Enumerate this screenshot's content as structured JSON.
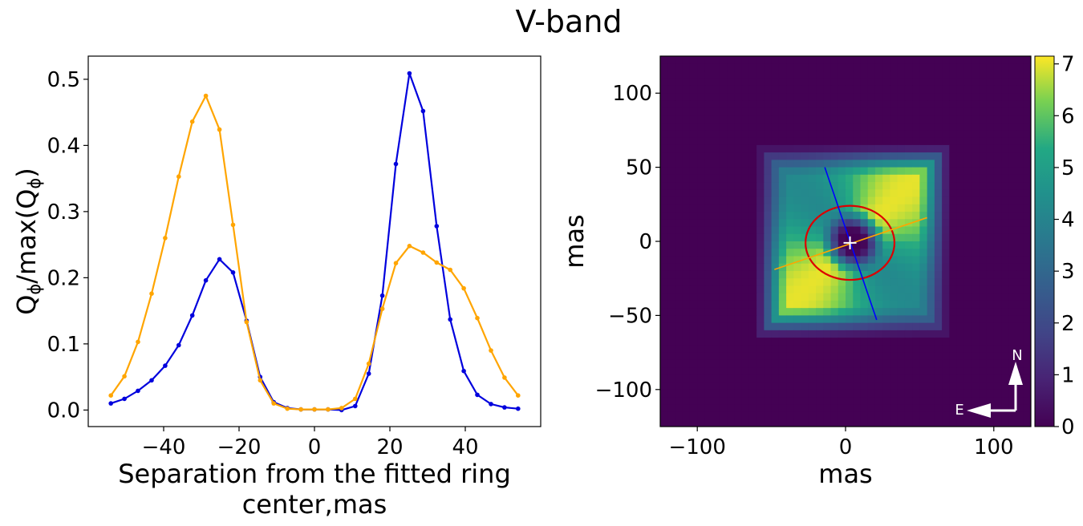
{
  "figure_title": "V-band",
  "chart_data": [
    {
      "type": "line",
      "title": "",
      "xlabel_line1": "Separation from the fitted ring",
      "xlabel_line2": "center,mas",
      "ylabel_main": "Q",
      "ylabel_sub": "ϕ",
      "ylabel_mid": "/max(Q",
      "ylabel_end": ")",
      "xlim": [
        -60,
        60
      ],
      "ylim": [
        -0.025,
        0.535
      ],
      "xticks": [
        -40,
        -20,
        0,
        20,
        40
      ],
      "xtick_labels": [
        "−40",
        "−20",
        "0",
        "20",
        "40"
      ],
      "yticks": [
        0.0,
        0.1,
        0.2,
        0.3,
        0.4,
        0.5
      ],
      "ytick_labels": [
        "0.0",
        "0.1",
        "0.2",
        "0.3",
        "0.4",
        "0.5"
      ],
      "grid": false,
      "x": [
        -54,
        -50.4,
        -46.8,
        -43.2,
        -39.6,
        -36,
        -32.4,
        -28.8,
        -25.2,
        -21.6,
        -18,
        -14.4,
        -10.8,
        -7.2,
        -3.6,
        0,
        3.6,
        7.2,
        10.8,
        14.4,
        18,
        21.6,
        25.2,
        28.8,
        32.4,
        36,
        39.6,
        43.2,
        46.8,
        50.4,
        54
      ],
      "series": [
        {
          "color": "#0000dd",
          "values": [
            0.01,
            0.017,
            0.029,
            0.045,
            0.067,
            0.098,
            0.143,
            0.196,
            0.228,
            0.208,
            0.135,
            0.05,
            0.012,
            0.003,
            0.001,
            0.001,
            0.001,
            0.0,
            0.006,
            0.055,
            0.173,
            0.372,
            0.509,
            0.452,
            0.278,
            0.137,
            0.059,
            0.023,
            0.009,
            0.004,
            0.002
          ]
        },
        {
          "color": "#ffa500",
          "values": [
            0.022,
            0.051,
            0.103,
            0.176,
            0.26,
            0.353,
            0.436,
            0.475,
            0.424,
            0.28,
            0.133,
            0.045,
            0.01,
            0.002,
            0.001,
            0.001,
            0.001,
            0.003,
            0.017,
            0.07,
            0.153,
            0.222,
            0.248,
            0.238,
            0.223,
            0.212,
            0.184,
            0.139,
            0.09,
            0.049,
            0.022
          ]
        }
      ]
    },
    {
      "type": "heatmap",
      "title": "",
      "xlabel": "mas",
      "ylabel": "mas",
      "xlim": [
        -125,
        125
      ],
      "ylim": [
        -125,
        125
      ],
      "xticks": [
        -100,
        0,
        100
      ],
      "xtick_labels": [
        "−100",
        "0",
        "100"
      ],
      "yticks": [
        100,
        50,
        0,
        -50,
        -100
      ],
      "ytick_labels": [
        "100",
        "50",
        "0",
        "−50",
        "−100"
      ],
      "colormap": "viridis",
      "color_range": [
        0,
        7.15
      ],
      "colorbar_ticks": [
        0,
        1,
        2,
        3,
        4,
        5,
        6,
        7
      ],
      "colorbar_tick_labels": [
        "0",
        "1",
        "2",
        "3",
        "4",
        "5",
        "6",
        "7"
      ],
      "emission": {
        "shape": "boxy ring with central hole",
        "center": [
          5,
          0
        ],
        "half_extent": 64,
        "peak_value": 7.0,
        "peak_location": "upper-right and lower-left of ring"
      },
      "fitted_ellipse": {
        "center": [
          3,
          -1
        ],
        "semi_major": 30,
        "semi_minor": 25,
        "color": "#dd0000"
      },
      "major_axis_line": {
        "from": [
          -48,
          -19
        ],
        "to": [
          55,
          16
        ],
        "color": "#ffa500"
      },
      "minor_axis_line": {
        "from": [
          -14,
          50
        ],
        "to": [
          21,
          -53
        ],
        "color": "#0000ff"
      },
      "center_marker": {
        "x": 3,
        "y": -1,
        "color": "#ffffff"
      },
      "compass": {
        "north_label": "N",
        "east_label": "E"
      }
    }
  ]
}
